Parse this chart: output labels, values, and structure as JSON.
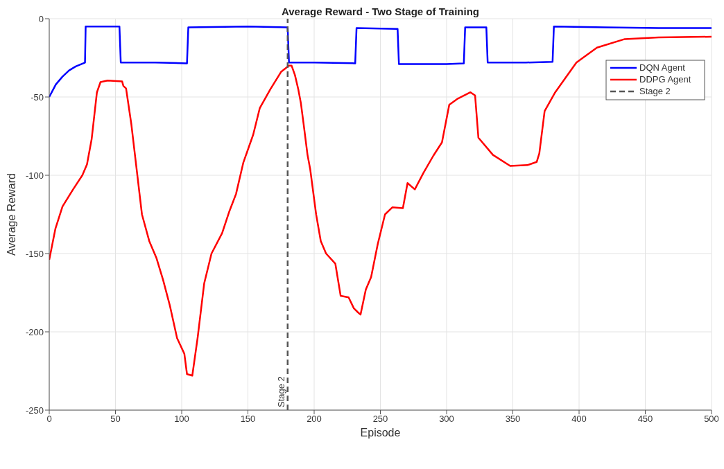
{
  "chart_data": {
    "type": "line",
    "title": "Average Reward - Two Stage of Training",
    "xlabel": "Episode",
    "ylabel": "Average Reward",
    "xlim": [
      0,
      500
    ],
    "xticks": [
      0,
      50,
      100,
      150,
      200,
      250,
      300,
      350,
      400,
      450,
      500
    ],
    "ylim": [
      -250,
      0
    ],
    "yticks": [
      -250,
      -200,
      -150,
      -100,
      -50,
      0
    ],
    "grid": true,
    "legend": "top right",
    "line_style": "solid",
    "marker": "none",
    "series": [
      {
        "name": "DQN Agent",
        "color": "#0000ff",
        "x": [
          0,
          5,
          10,
          15,
          20,
          27,
          27.5,
          40,
          53,
          54,
          80,
          104,
          105,
          150,
          180,
          181,
          200,
          231,
          232,
          263,
          264,
          300,
          313,
          314,
          330,
          331,
          360,
          380,
          381,
          420,
          460,
          500
        ],
        "values": [
          -50,
          -42,
          -37,
          -33,
          -30.5,
          -28,
          -5,
          -5,
          -5,
          -28,
          -28,
          -28.5,
          -5.5,
          -5,
          -5.5,
          -28,
          -28,
          -28.5,
          -6,
          -6.5,
          -29,
          -29,
          -28.5,
          -5.5,
          -5.5,
          -28,
          -28,
          -27.5,
          -5,
          -5.5,
          -6,
          -6
        ]
      },
      {
        "name": "DDPG Agent",
        "color": "#ff0000",
        "x": [
          0,
          4.7,
          10,
          18,
          25,
          28.5,
          32,
          36,
          38.7,
          44,
          55,
          56,
          58,
          62,
          70,
          75.5,
          81,
          86,
          91,
          96.5,
          102,
          104,
          108,
          112,
          117,
          122.5,
          130.5,
          136,
          141,
          146.5,
          154,
          159,
          167,
          175,
          181,
          183,
          185.5,
          188,
          190,
          192,
          195,
          197,
          201.5,
          205,
          209,
          216,
          220,
          226,
          230,
          233,
          235,
          239,
          243,
          248,
          253.5,
          259,
          267,
          270.5,
          276,
          282.5,
          290,
          296.5,
          302,
          308.5,
          318,
          321.5,
          324,
          335,
          348,
          361,
          368,
          370,
          374,
          382,
          398,
          413.5,
          434.5,
          460,
          500
        ],
        "values": [
          -154,
          -134,
          -120,
          -109,
          -100,
          -93,
          -77,
          -47,
          -40.5,
          -39.5,
          -40,
          -43,
          -44.5,
          -67.5,
          -125,
          -142,
          -153,
          -167,
          -183,
          -204,
          -214,
          -227,
          -228,
          -204,
          -169,
          -150,
          -137,
          -123,
          -112,
          -92,
          -74,
          -57,
          -45,
          -34,
          -30,
          -30,
          -36,
          -45,
          -54,
          -67,
          -87,
          -96,
          -125,
          -142,
          -150,
          -156.5,
          -177,
          -178,
          -185,
          -187.5,
          -189,
          -173,
          -165,
          -144,
          -125,
          -120.5,
          -121,
          -105,
          -109,
          -98.5,
          -87.5,
          -79,
          -55,
          -51,
          -47,
          -49,
          -76,
          -87,
          -94,
          -93.5,
          -91.5,
          -86,
          -59,
          -47,
          -28,
          -18.5,
          -13,
          -12,
          -11.5
        ]
      }
    ],
    "ref_lines": [
      {
        "axis": "x",
        "value": 180,
        "label": "Stage 2",
        "color": "#555555",
        "line_style": "dashed"
      }
    ]
  }
}
